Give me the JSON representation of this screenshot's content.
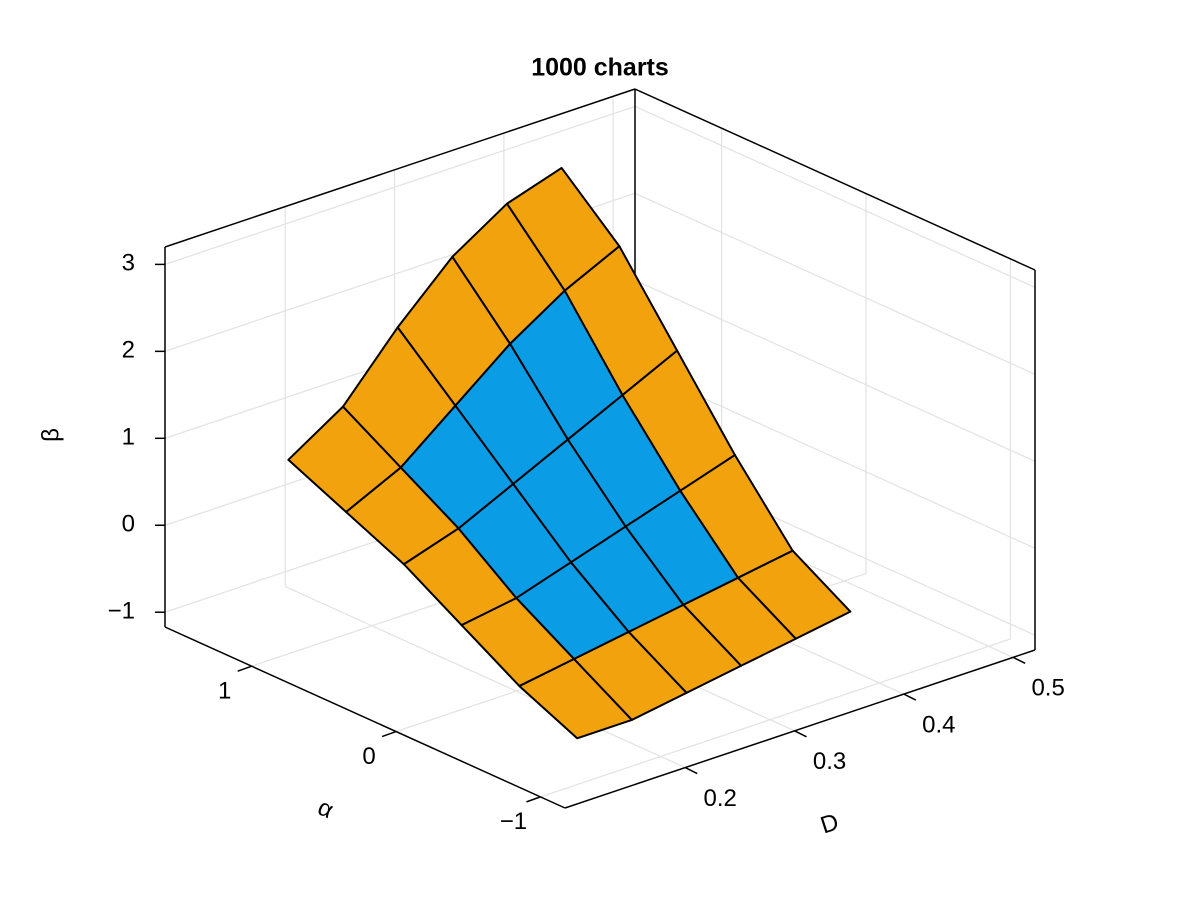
{
  "chart_data": {
    "type": "surface3d",
    "title": "1000 charts",
    "x_label": "D",
    "y_label": "α",
    "z_label": "β",
    "x": [
      0.15,
      0.2,
      0.25,
      0.3,
      0.35,
      0.4
    ],
    "y": [
      -0.8,
      -0.4,
      0,
      0.4,
      0.8,
      1.2
    ],
    "z": [
      [
        -0.9,
        -0.9,
        -0.8,
        -0.7,
        -0.6,
        -0.5
      ],
      [
        -0.6,
        -0.5,
        -0.4,
        -0.3,
        -0.2,
        -0.1
      ],
      [
        -0.2,
        -0.1,
        0.1,
        0.3,
        0.5,
        0.7
      ],
      [
        0.2,
        0.4,
        0.7,
        1.0,
        1.3,
        1.6
      ],
      [
        0.5,
        0.8,
        1.3,
        1.8,
        2.2,
        2.5
      ],
      [
        0.8,
        1.2,
        1.9,
        2.5,
        2.9,
        3.1
      ]
    ],
    "color": "#0a9de6",
    "edge_color": "#f2a20c",
    "xlim": [
      0.09,
      0.52
    ],
    "xticks": [
      0.2,
      0.3,
      0.4,
      0.5
    ],
    "ylim": [
      -1.17,
      1.6
    ],
    "yticks": [
      {
        "value": -1,
        "label": "−1"
      },
      0,
      1
    ],
    "zlim": [
      -1.17,
      3.2
    ],
    "zticks": [
      {
        "value": -1,
        "label": "−1"
      },
      0,
      1,
      2,
      3
    ],
    "grid": true
  }
}
